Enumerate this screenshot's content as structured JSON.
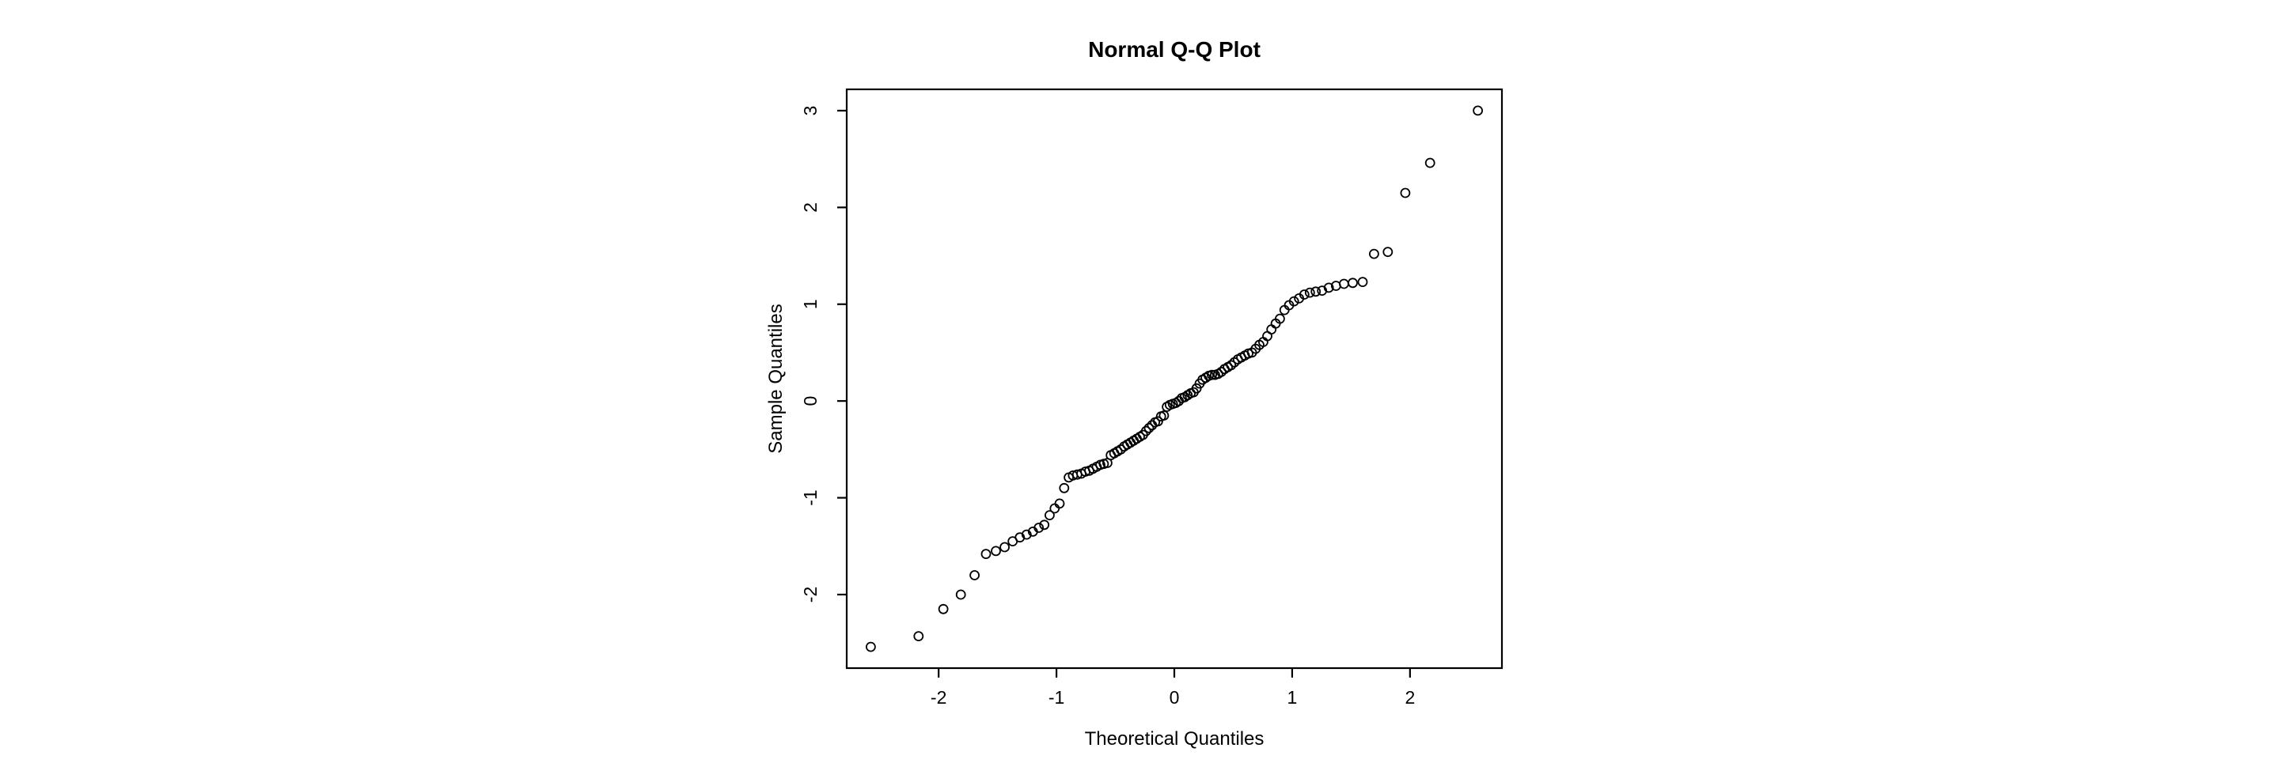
{
  "chart_data": {
    "type": "scatter",
    "title": "Normal Q-Q Plot",
    "xlabel": "Theoretical Quantiles",
    "ylabel": "Sample Quantiles",
    "x_ticks": [
      -2,
      -1,
      0,
      1,
      2
    ],
    "y_ticks": [
      -2,
      -1,
      0,
      1,
      2,
      3
    ],
    "xlim": [
      -2.78,
      2.78
    ],
    "ylim": [
      -2.76,
      3.22
    ],
    "grid": false,
    "legend": "none",
    "marker": "open-circle",
    "point_color": "#000000",
    "axis_color": "#000000",
    "background_color": "#ffffff",
    "n_points": 100,
    "x": [
      -2.576,
      -2.17,
      -1.96,
      -1.812,
      -1.695,
      -1.598,
      -1.514,
      -1.44,
      -1.372,
      -1.311,
      -1.254,
      -1.2,
      -1.15,
      -1.103,
      -1.058,
      -1.015,
      -0.974,
      -0.935,
      -0.896,
      -0.86,
      -0.824,
      -0.789,
      -0.755,
      -0.722,
      -0.69,
      -0.659,
      -0.628,
      -0.598,
      -0.568,
      -0.539,
      -0.51,
      -0.482,
      -0.454,
      -0.426,
      -0.399,
      -0.372,
      -0.345,
      -0.319,
      -0.292,
      -0.266,
      -0.24,
      -0.215,
      -0.189,
      -0.164,
      -0.138,
      -0.113,
      -0.088,
      -0.063,
      -0.038,
      -0.013,
      0.013,
      0.038,
      0.063,
      0.088,
      0.113,
      0.138,
      0.164,
      0.189,
      0.215,
      0.24,
      0.266,
      0.292,
      0.319,
      0.345,
      0.372,
      0.399,
      0.426,
      0.454,
      0.482,
      0.51,
      0.539,
      0.568,
      0.598,
      0.628,
      0.659,
      0.69,
      0.722,
      0.755,
      0.789,
      0.824,
      0.86,
      0.896,
      0.935,
      0.974,
      1.015,
      1.058,
      1.103,
      1.15,
      1.2,
      1.254,
      1.311,
      1.372,
      1.44,
      1.514,
      1.598,
      1.695,
      1.812,
      1.96,
      2.17,
      2.576
    ],
    "y": [
      -2.54,
      -2.43,
      -2.15,
      -2.0,
      -1.8,
      -1.58,
      -1.55,
      -1.51,
      -1.45,
      -1.41,
      -1.38,
      -1.35,
      -1.31,
      -1.28,
      -1.18,
      -1.11,
      -1.06,
      -0.9,
      -0.79,
      -0.77,
      -0.76,
      -0.75,
      -0.73,
      -0.72,
      -0.7,
      -0.68,
      -0.66,
      -0.65,
      -0.64,
      -0.56,
      -0.54,
      -0.52,
      -0.5,
      -0.47,
      -0.45,
      -0.43,
      -0.41,
      -0.39,
      -0.37,
      -0.35,
      -0.31,
      -0.28,
      -0.25,
      -0.22,
      -0.21,
      -0.16,
      -0.15,
      -0.06,
      -0.04,
      -0.03,
      -0.02,
      0.0,
      0.03,
      0.04,
      0.06,
      0.08,
      0.09,
      0.13,
      0.18,
      0.22,
      0.24,
      0.26,
      0.27,
      0.27,
      0.28,
      0.3,
      0.33,
      0.35,
      0.37,
      0.4,
      0.43,
      0.45,
      0.47,
      0.49,
      0.5,
      0.54,
      0.58,
      0.61,
      0.67,
      0.74,
      0.8,
      0.85,
      0.94,
      0.99,
      1.03,
      1.06,
      1.1,
      1.12,
      1.13,
      1.14,
      1.17,
      1.19,
      1.21,
      1.22,
      1.23,
      1.52,
      1.54,
      2.15,
      2.46,
      3.0
    ]
  }
}
